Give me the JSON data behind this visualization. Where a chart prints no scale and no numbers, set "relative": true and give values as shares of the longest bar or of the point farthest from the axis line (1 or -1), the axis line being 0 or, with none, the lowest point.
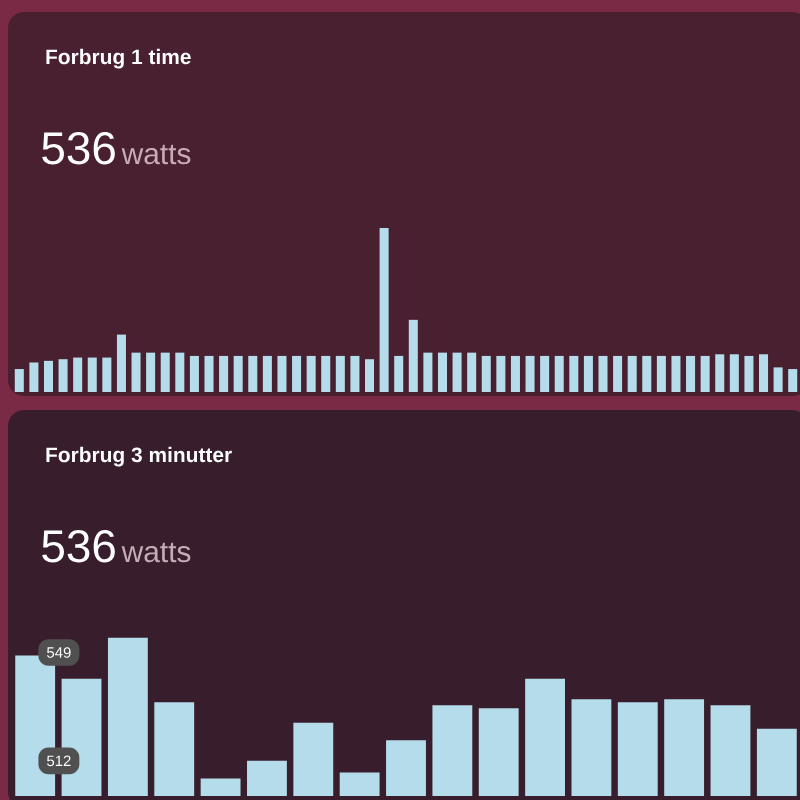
{
  "chart_data": [
    {
      "type": "bar",
      "title": "Forbrug 1 time",
      "annotations": [
        "536",
        "watts"
      ],
      "relative": true,
      "color": "#b4dcea",
      "categories": [
        null,
        null,
        null,
        null,
        null,
        null,
        null,
        null,
        null,
        null,
        null,
        null,
        null,
        null,
        null,
        null,
        null,
        null,
        null,
        null,
        null,
        null,
        null,
        null,
        null,
        null,
        null,
        null,
        null,
        null,
        null,
        null,
        null,
        null,
        null,
        null,
        null,
        null,
        null,
        null,
        null,
        null,
        null,
        null,
        null,
        null,
        null,
        null,
        null,
        null,
        null,
        null,
        null,
        null
      ],
      "values": [
        0.14,
        0.18,
        0.19,
        0.2,
        0.21,
        0.21,
        0.21,
        0.35,
        0.24,
        0.24,
        0.24,
        0.24,
        0.22,
        0.22,
        0.22,
        0.22,
        0.22,
        0.22,
        0.22,
        0.22,
        0.22,
        0.22,
        0.22,
        0.22,
        0.2,
        1,
        0.22,
        0.44,
        0.24,
        0.24,
        0.24,
        0.24,
        0.22,
        0.22,
        0.22,
        0.22,
        0.22,
        0.22,
        0.22,
        0.22,
        0.22,
        0.22,
        0.22,
        0.22,
        0.22,
        0.22,
        0.22,
        0.22,
        0.23,
        0.23,
        0.22,
        0.23,
        0.15,
        0.14
      ]
    },
    {
      "type": "bar",
      "title": "Forbrug 3 minutter",
      "annotations": [
        "536",
        "watts"
      ],
      "color": "#b4dcea",
      "tick_labels": "y",
      "categories": [
        null,
        null,
        null,
        null,
        null,
        null,
        null,
        null,
        null,
        null,
        null,
        null,
        null,
        null,
        null,
        null,
        null
      ],
      "values": [
        548,
        540,
        554,
        532,
        506,
        512,
        525,
        508,
        519,
        531,
        530,
        540,
        533,
        532,
        533,
        531,
        523
      ],
      "ylim": [
        500,
        632
      ],
      "yticks": [
        512,
        549
      ]
    }
  ]
}
